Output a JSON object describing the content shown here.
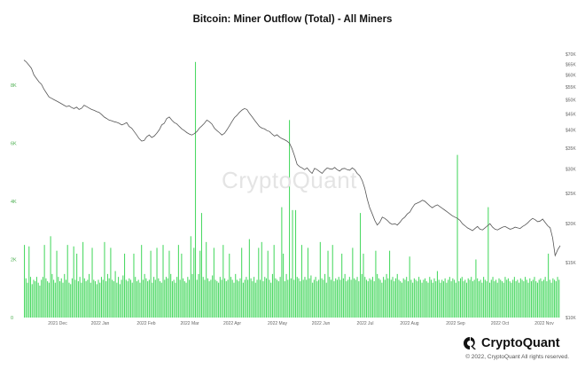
{
  "chart_data": {
    "type": "bar+line",
    "title": "Bitcoin: Miner Outflow (Total) - All Miners",
    "y_left": {
      "ticks": [
        "0",
        "2K",
        "4K",
        "6K",
        "8K"
      ],
      "tick_values": [
        0,
        2000,
        4000,
        6000,
        8000
      ],
      "ylim": [
        0,
        9100
      ]
    },
    "y_right": {
      "ticks": [
        "$70K",
        "$65K",
        "$60K",
        "$55K",
        "$50K",
        "$45K",
        "$40K",
        "$35K",
        "$30K",
        "$25K",
        "$20K",
        "$15K",
        "$10K"
      ],
      "tick_values": [
        70000,
        65000,
        60000,
        55000,
        50000,
        45000,
        40000,
        35000,
        30000,
        25000,
        20000,
        15000,
        10000
      ],
      "scale": "log"
    },
    "x_ticks": [
      "2021 Dec",
      "2022 Jan",
      "2022 Feb",
      "2022 Mar",
      "2022 Apr",
      "2022 May",
      "2022 Jun",
      "2022 Jul",
      "2022 Aug",
      "2022 Sep",
      "2022 Oct",
      "2022 Nov"
    ],
    "bar_color": "#4cd964",
    "line_color": "#555555",
    "series": [
      {
        "name": "Miner Outflow (Total)",
        "type": "bar",
        "values": [
          2500,
          1350,
          1200,
          2450,
          1400,
          1150,
          1300,
          1250,
          1400,
          1200,
          1100,
          1300,
          1400,
          2500,
          1350,
          1250,
          1200,
          2800,
          1500,
          1300,
          1200,
          2300,
          1400,
          1250,
          1350,
          1200,
          1500,
          1300,
          2500,
          1200,
          1150,
          1350,
          2450,
          1300,
          2200,
          1250,
          1400,
          1200,
          2600,
          1350,
          1250,
          1300,
          1500,
          1200,
          2400,
          1300,
          1250,
          1150,
          1300,
          1200,
          1400,
          1300,
          2600,
          1250,
          1500,
          1350,
          2400,
          1300,
          1250,
          1600,
          1200,
          1400,
          1150,
          1300,
          1450,
          2200,
          1300,
          1250,
          1350,
          1300,
          1200,
          2200,
          1400,
          1250,
          1300,
          1200,
          2500,
          1300,
          1500,
          1350,
          1250,
          1300,
          2300,
          1200,
          1400,
          1300,
          2400,
          1350,
          1250,
          1200,
          2500,
          1300,
          1400,
          1350,
          2300,
          1500,
          1250,
          1300,
          1200,
          1400,
          2500,
          1300,
          2200,
          1350,
          1250,
          1200,
          1400,
          1300,
          2800,
          1500,
          2400,
          1350,
          1300,
          1500,
          2300,
          1200,
          1400,
          1300,
          2600,
          1350,
          1250,
          1300,
          1450,
          2400,
          1300,
          1250,
          1200,
          1400,
          1300,
          2500,
          1350,
          1250,
          1300,
          2200,
          1400,
          1300,
          1200,
          1500,
          1300,
          1250,
          1350,
          2400,
          1200,
          1300,
          1400,
          1300,
          2700,
          1350,
          1250,
          1400,
          1200,
          1300,
          2400,
          1300,
          2600,
          1250,
          1400,
          1350,
          2300,
          1300,
          1200,
          1500,
          2500,
          1350,
          1300,
          1250,
          1400,
          1300,
          2200,
          1250,
          1500,
          1300,
          1400,
          1350,
          2400,
          1300,
          3700,
          1400,
          1350,
          1250,
          2500,
          1300,
          1400,
          1300,
          2400,
          1350,
          1450,
          1200,
          1300,
          1400,
          1250,
          1300,
          2600,
          1350,
          1300,
          1500,
          1200,
          2300,
          1400,
          1300,
          2500,
          1250,
          1350,
          1300,
          1400,
          1300,
          2200,
          1350,
          1500,
          1250,
          1300,
          1400,
          1300,
          2400,
          1350,
          1300,
          1400,
          1250,
          1300,
          1500,
          2200,
          1400,
          1300,
          1250,
          1350,
          1300,
          1400,
          1250,
          2300,
          1500,
          1350,
          1300,
          1200,
          1400,
          1300,
          1500,
          1350,
          2300,
          1300,
          1400,
          1250,
          1350,
          1500,
          1300,
          1250,
          1200,
          1350,
          1300,
          1400,
          1250,
          2100,
          1300,
          1200,
          1350,
          1300,
          1250,
          1400,
          1300,
          1200,
          1300,
          1350,
          1250,
          1200,
          1400,
          1300,
          1200,
          1350,
          1250,
          1600,
          1300,
          1200,
          1300,
          1250,
          1350,
          1200,
          1300,
          1400,
          1250,
          1350,
          1300,
          1200,
          1300,
          1250,
          1350,
          1400,
          1250,
          1300,
          1200,
          1350,
          1300,
          1400,
          1250,
          1300,
          2000,
          1350,
          1250,
          1300,
          1200,
          1400,
          1300,
          1250,
          1350,
          1200,
          1300,
          1400,
          1250,
          1300,
          1200,
          1350,
          1300,
          1250,
          1200,
          1400,
          1300,
          1350,
          1250,
          1200,
          1300,
          1400,
          1250,
          1300,
          1200,
          1350,
          1300,
          1250,
          1400,
          1300,
          1200,
          1350,
          1250,
          1300,
          1400,
          1250,
          1200,
          1300,
          1350,
          1250,
          1300,
          1400,
          1250,
          2200,
          1300,
          1200,
          1350,
          1300,
          1250,
          1400,
          1300
        ],
        "spikes": [
          {
            "index": 111,
            "value": 8800
          },
          {
            "index": 115,
            "value": 3600
          },
          {
            "index": 167,
            "value": 3800
          },
          {
            "index": 172,
            "value": 6800
          },
          {
            "index": 174,
            "value": 3700
          },
          {
            "index": 218,
            "value": 3600
          },
          {
            "index": 281,
            "value": 5600
          },
          {
            "index": 301,
            "value": 3800
          },
          {
            "index": 348,
            "value": 5400
          },
          {
            "index": 349,
            "value": 3200
          }
        ]
      },
      {
        "name": "BTC Price",
        "type": "line",
        "values": [
          67000,
          66000,
          64500,
          63000,
          60000,
          58500,
          57000,
          56000,
          54000,
          52500,
          51000,
          50500,
          50000,
          49500,
          49000,
          48500,
          48000,
          47500,
          47800,
          47200,
          46800,
          47300,
          46500,
          46900,
          48000,
          47500,
          47000,
          46500,
          46200,
          45800,
          45500,
          44800,
          44000,
          43500,
          43000,
          42800,
          42500,
          42300,
          42000,
          41500,
          41800,
          42200,
          41000,
          40500,
          39500,
          38500,
          37500,
          36800,
          37000,
          38000,
          38500,
          37800,
          38200,
          39000,
          40000,
          41500,
          42000,
          43500,
          44000,
          43000,
          42200,
          41800,
          41000,
          40300,
          39800,
          39200,
          38800,
          38500,
          38900,
          39500,
          40500,
          41200,
          42000,
          43000,
          42500,
          41800,
          40500,
          39800,
          39200,
          38500,
          39000,
          40000,
          41200,
          42500,
          43800,
          44500,
          45500,
          46300,
          46800,
          46500,
          45200,
          44100,
          43000,
          42000,
          41000,
          40500,
          40300,
          39800,
          39500,
          38800,
          38200,
          38600,
          37900,
          37500,
          37200,
          36800,
          36200,
          34800,
          33000,
          31000,
          30500,
          30200,
          29800,
          30200,
          29500,
          29000,
          30100,
          29800,
          29400,
          29000,
          29700,
          30200,
          30000,
          29900,
          30300,
          29800,
          29500,
          30000,
          30100,
          29800,
          29700,
          30200,
          29800,
          29000,
          28500,
          27500,
          26000,
          24000,
          22500,
          21500,
          20500,
          19800,
          20200,
          21000,
          20800,
          20500,
          20100,
          19900,
          20000,
          19800,
          20200,
          20700,
          21000,
          21500,
          21800,
          22500,
          23100,
          23300,
          23500,
          23800,
          23600,
          23200,
          22800,
          22500,
          22800,
          23000,
          22700,
          22400,
          22100,
          21800,
          21500,
          21200,
          21000,
          20800,
          20500,
          20000,
          19700,
          19400,
          19200,
          19000,
          19300,
          19600,
          19200,
          19100,
          19400,
          19700,
          20000,
          19500,
          19200,
          19100,
          19300,
          19500,
          19600,
          19400,
          19200,
          19300,
          19500,
          19400,
          19300,
          19600,
          19800,
          20100,
          20500,
          20800,
          20600,
          20300,
          20400,
          20700,
          20200,
          19700,
          19400,
          18000,
          15800,
          16500,
          17000
        ]
      }
    ]
  },
  "watermark": "CryptoQuant",
  "brand": {
    "name": "CryptoQuant",
    "logo_icon": "cryptoquant-logo-icon"
  },
  "copyright": "© 2022, CryptoQuant All rights reserved."
}
